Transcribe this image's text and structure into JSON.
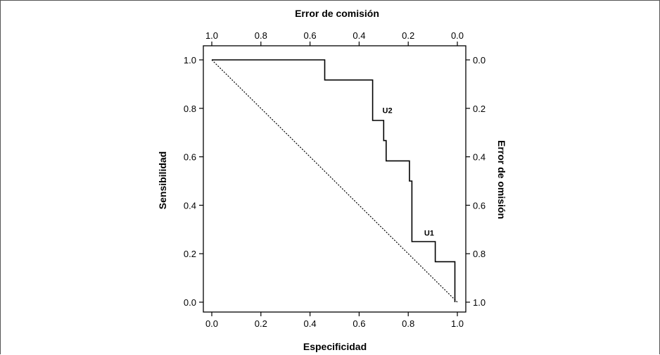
{
  "chart_data": {
    "type": "line",
    "xlabel": "Especificidad",
    "ylabel": "Sensibilidad",
    "top_xlabel": "Error de comisión",
    "right_ylabel": "Error de omisión",
    "xlim": [
      0,
      1
    ],
    "ylim": [
      0,
      1
    ],
    "x_ticks": [
      "0.0",
      "0.2",
      "0.4",
      "0.6",
      "0.8",
      "1.0"
    ],
    "y_ticks": [
      "0.0",
      "0.2",
      "0.4",
      "0.6",
      "0.8",
      "1.0"
    ],
    "top_ticks": [
      "1.0",
      "0.8",
      "0.6",
      "0.4",
      "0.2",
      "0.0"
    ],
    "right_ticks": [
      "1.0",
      "0.8",
      "0.6",
      "0.4",
      "0.2",
      "0.0"
    ],
    "grid": false,
    "series": [
      {
        "style": "solid step",
        "x": [
          0.0,
          0.46,
          0.46,
          0.655,
          0.655,
          0.7,
          0.7,
          0.71,
          0.71,
          0.72,
          0.72,
          0.805,
          0.805,
          0.815,
          0.815,
          0.91,
          0.91,
          0.99,
          0.99
        ],
        "y": [
          1.0,
          1.0,
          0.917,
          0.917,
          0.75,
          0.75,
          0.667,
          0.667,
          0.583,
          0.583,
          0.583,
          0.583,
          0.5,
          0.5,
          0.25,
          0.25,
          0.167,
          0.167,
          0.0
        ]
      },
      {
        "style": "dotted diagonal",
        "x": [
          0.0,
          1.0
        ],
        "y": [
          1.0,
          0.0
        ]
      }
    ],
    "annotations": [
      {
        "text": "U2",
        "x": 0.715,
        "y": 0.78
      },
      {
        "text": "U1",
        "x": 0.885,
        "y": 0.275
      }
    ]
  }
}
